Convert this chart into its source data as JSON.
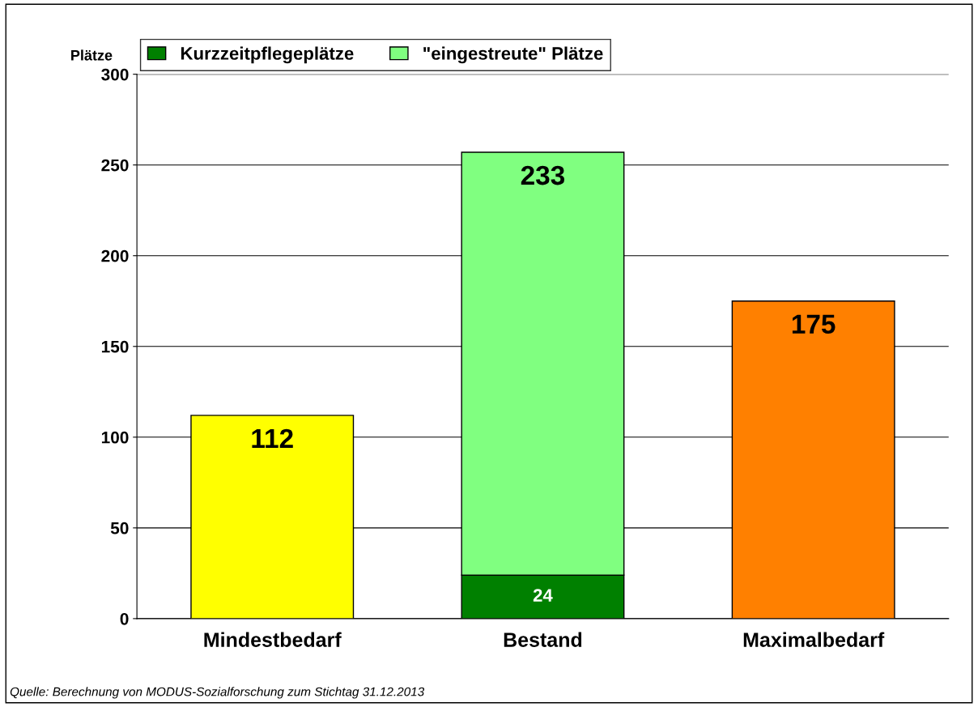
{
  "chart_data": {
    "type": "bar",
    "ylabel": "Plätze",
    "categories": [
      "Mindestbedarf",
      "Bestand",
      "Maximalbedarf"
    ],
    "series": [
      {
        "colors": [
          "#ffff00",
          null,
          "#ff8000"
        ],
        "values": [
          112,
          null,
          175
        ]
      },
      {
        "name": "Kurzzeitpflegeplätze",
        "color": "#008000",
        "values": [
          null,
          24,
          null
        ]
      },
      {
        "name": "\"eingestreute\" Plätze",
        "color": "#80ff80",
        "values": [
          null,
          233,
          null
        ]
      }
    ],
    "stacked": true,
    "data_labels": true,
    "legend": "top left",
    "grid": "y",
    "ylim": [
      0,
      300
    ],
    "yticks": [
      0,
      50,
      100,
      150,
      200,
      250,
      300
    ],
    "annotations": [
      "Quelle: Berechnung von MODUS-Sozialforschung zum Stichtag 31.12.2013"
    ]
  }
}
